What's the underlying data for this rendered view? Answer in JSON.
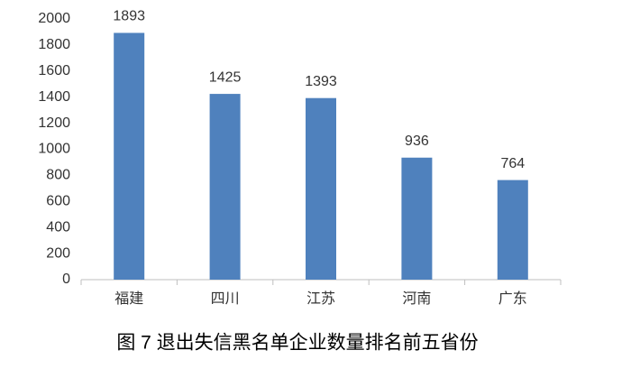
{
  "chart_data": {
    "type": "bar",
    "title": "图 7  退出失信黑名单企业数量排名前五省份",
    "categories": [
      "福建",
      "四川",
      "江苏",
      "河南",
      "广东"
    ],
    "values": [
      1893,
      1425,
      1393,
      936,
      764
    ],
    "color": "#4f81bd",
    "ylim": [
      0,
      2000
    ],
    "yticks": [
      0,
      200,
      400,
      600,
      800,
      1000,
      1200,
      1400,
      1600,
      1800,
      2000
    ],
    "data_labels": true
  }
}
